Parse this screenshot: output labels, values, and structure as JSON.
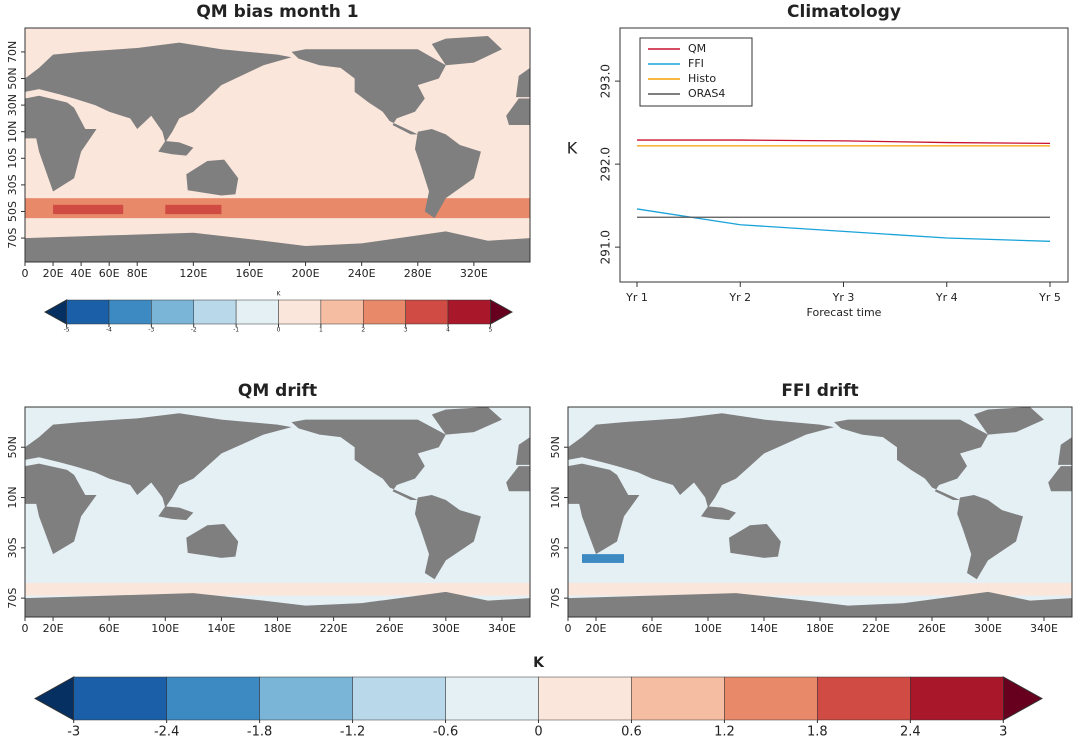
{
  "chart_data": [
    {
      "type": "map",
      "title": "QM bias month 1",
      "background_color": "#fbe6db",
      "xlim": [
        0,
        360
      ],
      "ylim": [
        -88,
        88
      ],
      "xticks": [
        0,
        {
          "value": 20,
          "label": "20E"
        },
        {
          "value": 40,
          "label": "40E"
        },
        {
          "value": 60,
          "label": "60E"
        },
        {
          "value": 80,
          "label": "80E"
        },
        {
          "value": 120,
          "label": "120E"
        },
        {
          "value": 160,
          "label": "160E"
        },
        {
          "value": 200,
          "label": "200E"
        },
        {
          "value": 240,
          "label": "240E"
        },
        {
          "value": 280,
          "label": "280E"
        },
        {
          "value": 320,
          "label": "320E"
        }
      ],
      "yticks": [
        {
          "value": -70,
          "label": "70S"
        },
        {
          "value": -50,
          "label": "50S"
        },
        {
          "value": -30,
          "label": "30S"
        },
        {
          "value": -10,
          "label": "10S"
        },
        {
          "value": 10,
          "label": "10N"
        },
        {
          "value": 30,
          "label": "30N"
        },
        {
          "value": 50,
          "label": "50N"
        },
        {
          "value": 70,
          "label": "70N"
        }
      ]
    },
    {
      "type": "colorbar",
      "label": "K",
      "ticks": [
        -5,
        -4,
        -3,
        -2,
        -1,
        0,
        1,
        2,
        3,
        4,
        5
      ],
      "colors": [
        "#1a5fa8",
        "#3d8ac2",
        "#7ab4d6",
        "#b9d8ea",
        "#e5f0f5",
        "#fbe6db",
        "#f5bea3",
        "#e8896a",
        "#cf4b43",
        "#a8172a"
      ],
      "under_color": "#053061",
      "over_color": "#67001f"
    },
    {
      "type": "line",
      "title": "Climatology",
      "xlabel": "Forecast time",
      "ylabel": "K",
      "categories": [
        "Yr 1",
        "Yr 2",
        "Yr 3",
        "Yr 4",
        "Yr 5"
      ],
      "ylim": [
        290.58,
        293.64
      ],
      "yticks": [
        {
          "value": 291,
          "label": "291.0"
        },
        {
          "value": 292,
          "label": "292.0"
        },
        {
          "value": 293,
          "label": "293.0"
        }
      ],
      "legend": "top-left",
      "series": [
        {
          "name": "QM",
          "color": "#c8102e",
          "values": [
            292.29,
            292.29,
            292.28,
            292.26,
            292.25
          ]
        },
        {
          "name": "FFI",
          "color": "#1aa3d9",
          "values": [
            291.46,
            291.27,
            291.19,
            291.11,
            291.07
          ]
        },
        {
          "name": "Histo",
          "color": "#f5a000",
          "values": [
            292.22,
            292.22,
            292.22,
            292.22,
            292.22
          ]
        },
        {
          "name": "ORAS4",
          "color": "#555555",
          "values": [
            291.36,
            291.36,
            291.36,
            291.36,
            291.36
          ]
        }
      ]
    },
    {
      "type": "map",
      "title": "QM drift",
      "background_color": "#e5f0f5",
      "xlim": [
        0,
        360
      ],
      "ylim": [
        -85,
        82
      ],
      "xticks": [
        0,
        {
          "value": 20,
          "label": "20E"
        },
        {
          "value": 60,
          "label": "60E"
        },
        {
          "value": 100,
          "label": "100E"
        },
        {
          "value": 140,
          "label": "140E"
        },
        {
          "value": 180,
          "label": "180E"
        },
        {
          "value": 220,
          "label": "220E"
        },
        {
          "value": 260,
          "label": "260E"
        },
        {
          "value": 300,
          "label": "300E"
        },
        {
          "value": 340,
          "label": "340E"
        }
      ],
      "yticks": [
        {
          "value": -70,
          "label": "70S"
        },
        {
          "value": -30,
          "label": "30S"
        },
        {
          "value": 10,
          "label": "10N"
        },
        {
          "value": 50,
          "label": "50N"
        }
      ]
    },
    {
      "type": "map",
      "title": "FFI drift",
      "background_color": "#e5f0f5",
      "xlim": [
        0,
        360
      ],
      "ylim": [
        -85,
        82
      ],
      "xticks": [
        0,
        {
          "value": 20,
          "label": "20E"
        },
        {
          "value": 60,
          "label": "60E"
        },
        {
          "value": 100,
          "label": "100E"
        },
        {
          "value": 140,
          "label": "140E"
        },
        {
          "value": 180,
          "label": "180E"
        },
        {
          "value": 220,
          "label": "220E"
        },
        {
          "value": 260,
          "label": "260E"
        },
        {
          "value": 300,
          "label": "300E"
        },
        {
          "value": 340,
          "label": "340E"
        }
      ],
      "yticks": [
        {
          "value": -70,
          "label": "70S"
        },
        {
          "value": -30,
          "label": "30S"
        },
        {
          "value": 10,
          "label": "10N"
        },
        {
          "value": 50,
          "label": "50N"
        }
      ]
    },
    {
      "type": "colorbar",
      "label": "K",
      "ticks": [
        -3,
        -2.4,
        -1.8,
        -1.2,
        -0.6,
        0,
        0.6,
        1.2,
        1.8,
        2.4,
        3
      ],
      "colors": [
        "#1a5fa8",
        "#3d8ac2",
        "#7ab4d6",
        "#b9d8ea",
        "#e5f0f5",
        "#fbe6db",
        "#f5bea3",
        "#e8896a",
        "#cf4b43",
        "#a8172a"
      ],
      "under_color": "#053061",
      "over_color": "#67001f"
    }
  ]
}
